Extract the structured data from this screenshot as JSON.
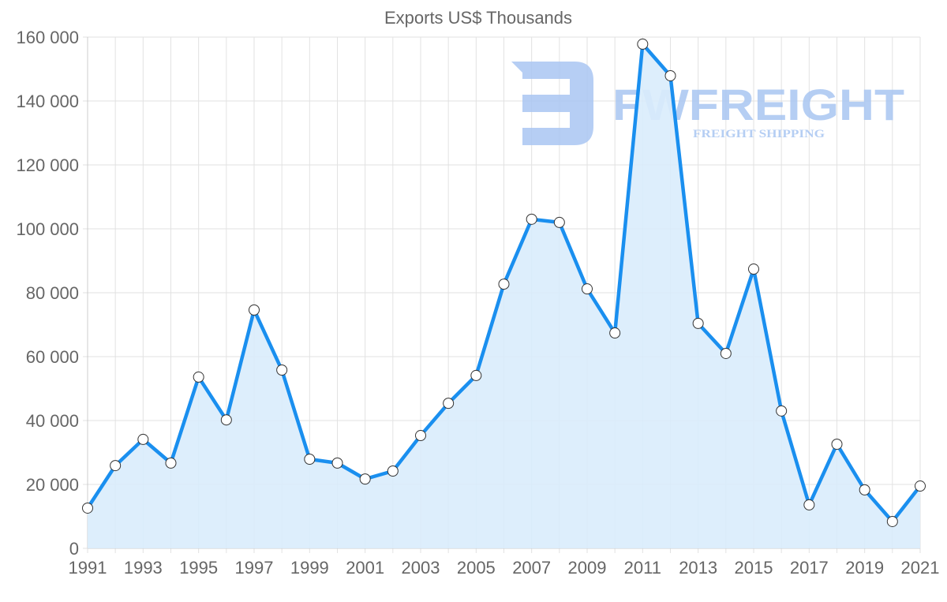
{
  "chart_data": {
    "type": "line",
    "title": "Exports US$ Thousands",
    "xlabel": "",
    "ylabel": "",
    "ylim": [
      0,
      160000
    ],
    "grid": true,
    "legend": "none",
    "filled_area": true,
    "x": [
      1991,
      1992,
      1993,
      1994,
      1995,
      1996,
      1997,
      1998,
      1999,
      2000,
      2001,
      2002,
      2003,
      2004,
      2005,
      2006,
      2007,
      2008,
      2009,
      2010,
      2011,
      2012,
      2013,
      2014,
      2015,
      2016,
      2017,
      2018,
      2019,
      2020,
      2021
    ],
    "x_tick_labels": [
      "1991",
      "1993",
      "1995",
      "1997",
      "1999",
      "2001",
      "2003",
      "2005",
      "2007",
      "2009",
      "2011",
      "2013",
      "2015",
      "2017",
      "2019",
      "2021"
    ],
    "y_tick_labels": [
      "0",
      "20 000",
      "40 000",
      "60 000",
      "80 000",
      "100 000",
      "120 000",
      "140 000",
      "160 000"
    ],
    "y_ticks": [
      0,
      20000,
      40000,
      60000,
      80000,
      100000,
      120000,
      140000,
      160000
    ],
    "series": [
      {
        "name": "Exports",
        "values": [
          12600,
          25900,
          34100,
          26700,
          53600,
          40200,
          74600,
          55800,
          27900,
          26700,
          21700,
          24200,
          35300,
          45400,
          54100,
          82700,
          103000,
          102000,
          81200,
          67400,
          157800,
          147900,
          70400,
          61000,
          87400,
          43000,
          13600,
          32600,
          18300,
          8400,
          19500
        ]
      }
    ]
  },
  "colors": {
    "line": "#1a8fef",
    "fill": "#d9ecfc",
    "grid": "#e2e2e2",
    "text": "#666666",
    "marker_fill": "#ffffff",
    "marker_stroke": "#333333",
    "watermark": "#a9c6f2"
  },
  "watermark": {
    "brand": "FWFREIGHT",
    "tagline": "FREIGHT SHIPPING",
    "logo_icon": "f-logo-icon"
  }
}
